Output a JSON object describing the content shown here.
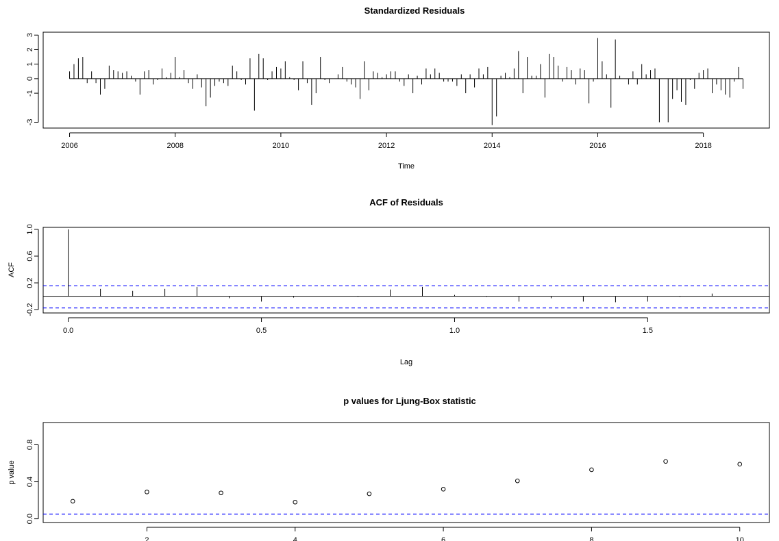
{
  "chart_data": [
    {
      "type": "bar",
      "title": "Standardized Residuals",
      "xlabel": "Time",
      "ylabel": "",
      "xlim": [
        2005.5,
        2019.25
      ],
      "ylim": [
        -3.4,
        3.2
      ],
      "x_ticks": [
        2006,
        2008,
        2010,
        2012,
        2014,
        2016,
        2018
      ],
      "x_tick_labels": [
        "2006",
        "2008",
        "2010",
        "2012",
        "2014",
        "2016",
        "2018"
      ],
      "y_ticks": [
        -3,
        -1,
        0,
        1,
        2,
        3
      ],
      "y_tick_labels": [
        "-3",
        "-1",
        "0",
        "1",
        "2",
        "3"
      ],
      "start": 2006.0,
      "frequency": 12,
      "values": [
        0.5,
        1.0,
        1.4,
        1.5,
        -0.3,
        0.5,
        -0.3,
        -1.1,
        -0.7,
        0.9,
        0.6,
        0.5,
        0.4,
        0.5,
        0.2,
        -0.2,
        -1.1,
        0.5,
        0.6,
        -0.4,
        -0.1,
        0.7,
        0.1,
        0.4,
        1.5,
        0.1,
        0.6,
        -0.3,
        -0.7,
        0.3,
        -0.6,
        -1.9,
        -1.3,
        -0.5,
        -0.2,
        -0.3,
        -0.5,
        0.9,
        0.5,
        -0.1,
        -0.4,
        1.4,
        -2.2,
        1.7,
        1.4,
        -0.1,
        0.5,
        0.8,
        0.7,
        1.2,
        0.1,
        -0.1,
        -0.8,
        1.2,
        -0.3,
        -1.8,
        -1.0,
        1.5,
        -0.1,
        -0.3,
        0.0,
        0.3,
        0.8,
        -0.2,
        -0.4,
        -0.6,
        -1.4,
        1.2,
        -0.8,
        0.5,
        0.4,
        0.1,
        0.3,
        0.5,
        0.5,
        -0.2,
        -0.5,
        0.3,
        -1.0,
        0.2,
        -0.4,
        0.7,
        0.3,
        0.7,
        0.4,
        -0.2,
        -0.2,
        -0.2,
        -0.5,
        0.3,
        -1.0,
        0.3,
        -0.6,
        0.7,
        0.3,
        0.8,
        -3.2,
        -2.6,
        0.2,
        0.4,
        0.1,
        0.7,
        1.9,
        -1.0,
        1.5,
        0.2,
        0.2,
        1.0,
        -1.3,
        1.7,
        1.5,
        0.9,
        -0.2,
        0.8,
        0.6,
        -0.4,
        0.7,
        0.6,
        -1.7,
        -0.2,
        2.8,
        1.2,
        0.3,
        -2.0,
        2.7,
        0.2,
        0.0,
        -0.4,
        0.5,
        -0.4,
        1.0,
        0.3,
        0.6,
        0.7,
        -3.0,
        0.0,
        -3.0,
        -1.4,
        -0.8,
        -1.6,
        -1.8,
        -0.1,
        -0.7,
        0.4,
        0.6,
        0.7,
        -1.0,
        -0.4,
        -0.8,
        -1.1,
        -1.3,
        -0.2,
        0.8,
        -0.7
      ]
    },
    {
      "type": "bar",
      "title": "ACF of Residuals",
      "xlabel": "Lag",
      "ylabel": "ACF",
      "xlim": [
        -0.065,
        1.815
      ],
      "ylim": [
        -0.25,
        1.03
      ],
      "x_ticks": [
        0.0,
        0.5,
        1.0,
        1.5
      ],
      "x_tick_labels": [
        "0.0",
        "0.5",
        "1.0",
        "1.5"
      ],
      "y_ticks": [
        -0.2,
        0.2,
        0.6,
        1.0
      ],
      "y_tick_labels": [
        "-0.2",
        "0.2",
        "0.6",
        "1.0"
      ],
      "x": [
        0.0,
        0.0833,
        0.1667,
        0.25,
        0.3333,
        0.4167,
        0.5,
        0.5833,
        0.6667,
        0.75,
        0.8333,
        0.9167,
        1.0,
        1.0833,
        1.1667,
        1.25,
        1.3333,
        1.4167,
        1.5,
        1.5833,
        1.6667
      ],
      "values": [
        1.0,
        0.11,
        0.08,
        0.11,
        0.14,
        -0.03,
        -0.08,
        -0.02,
        0.0,
        -0.01,
        0.1,
        0.14,
        0.02,
        -0.01,
        -0.08,
        -0.03,
        -0.08,
        -0.09,
        -0.08,
        -0.01,
        0.04
      ],
      "ci_bounds": [
        0.155,
        -0.175
      ]
    },
    {
      "type": "scatter",
      "title": "p values for Ljung-Box statistic",
      "xlabel": "",
      "ylabel": "p value",
      "xlim": [
        0.6,
        10.4
      ],
      "ylim": [
        -0.04,
        1.04
      ],
      "x_ticks": [
        2,
        4,
        6,
        8,
        10
      ],
      "x_tick_labels": [
        "2",
        "4",
        "6",
        "8",
        "10"
      ],
      "y_ticks": [
        0.0,
        0.4,
        0.8
      ],
      "y_tick_labels": [
        "0.0",
        "0.4",
        "0.8"
      ],
      "x": [
        1,
        2,
        3,
        4,
        5,
        6,
        7,
        8,
        9,
        10
      ],
      "values": [
        0.19,
        0.29,
        0.28,
        0.18,
        0.27,
        0.32,
        0.41,
        0.53,
        0.62,
        0.59
      ],
      "reference_line": 0.05
    }
  ],
  "colors": {
    "axis": "#000000",
    "bars": "#000000",
    "reference": "#0000ff"
  }
}
